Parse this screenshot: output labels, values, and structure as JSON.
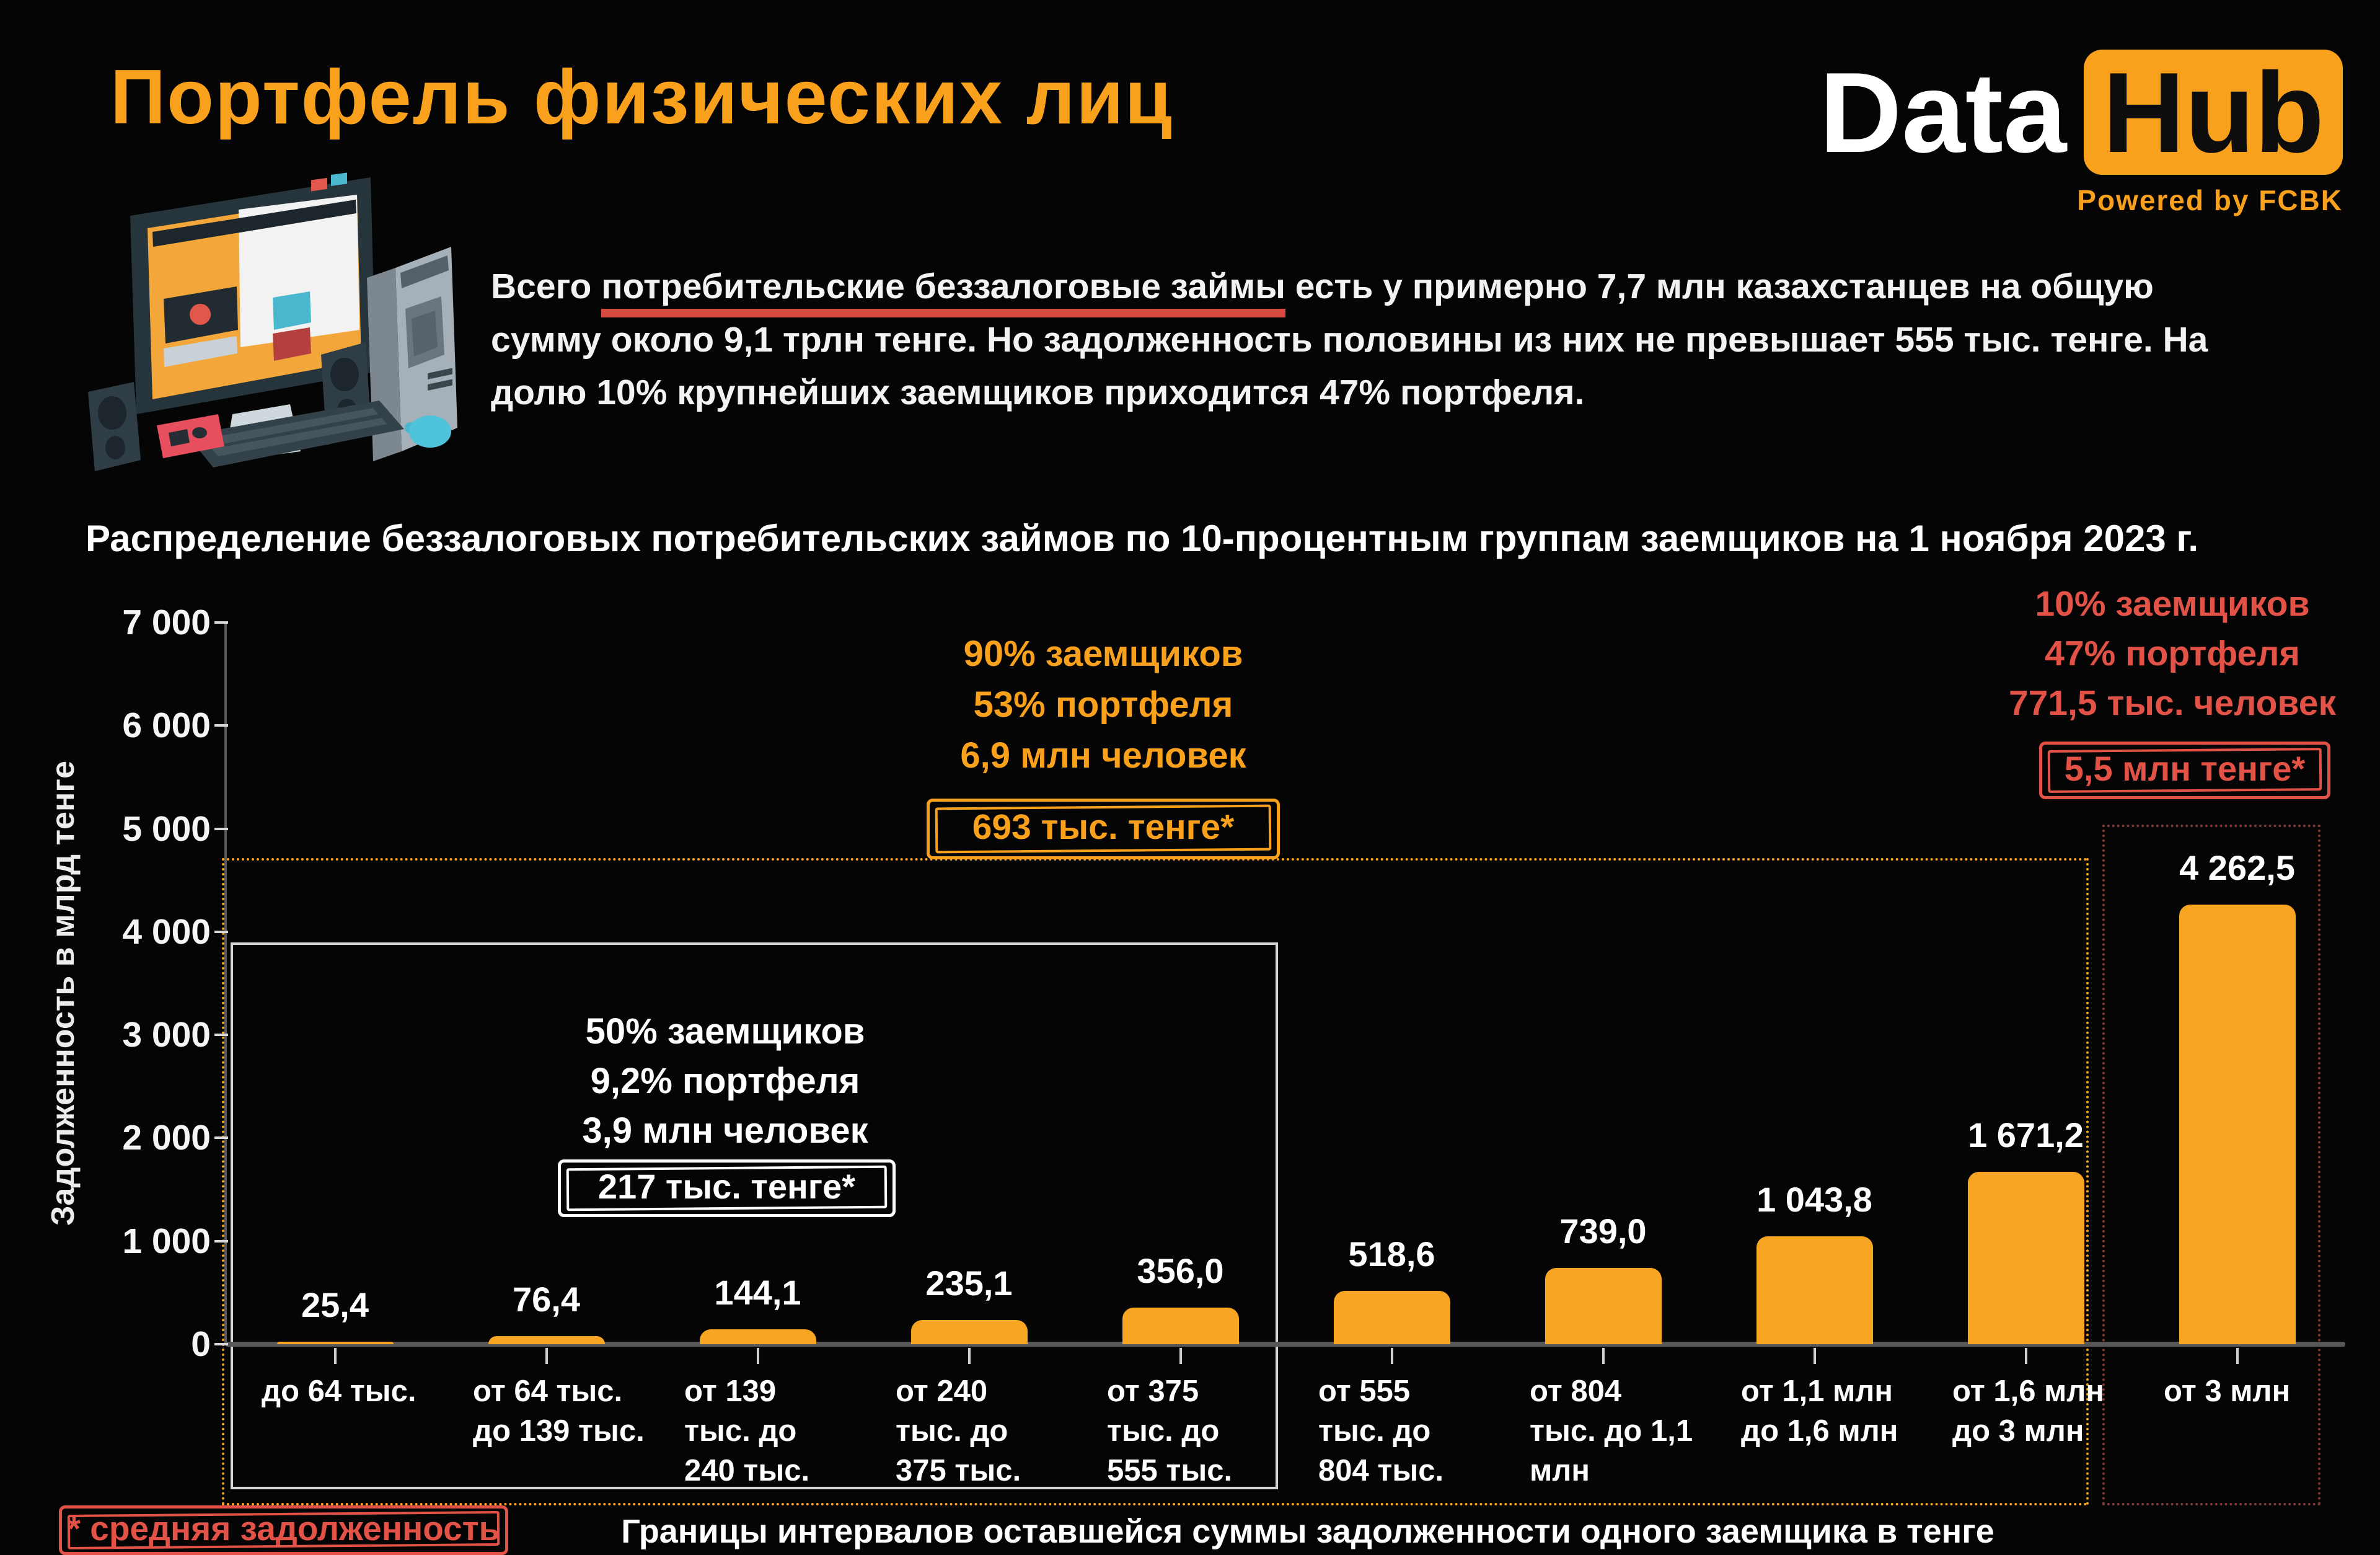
{
  "header": {
    "title": "Портфель физических лиц",
    "logo": {
      "part1": "Data",
      "part2": "Hub",
      "tagline": "Powered by FCBK"
    }
  },
  "intro": {
    "text_before": "Всего ",
    "text_underlined": "потребительские беззалоговые займы",
    "text_after": " есть у примерно 7,7 млн казахстанцев на общую сумму около 9,1 трлн тенге. Но задолженность половины из них не превышает 555 тыс. тенге. На долю 10% крупнейших заемщиков приходится 47% портфеля."
  },
  "chart_data": {
    "type": "bar",
    "title": "Распределение беззалоговых потребительских займов по 10-процентным группам заемщиков на 1 ноября 2023 г.",
    "ylabel": "Задолженность в млрд тенге",
    "xlabel": "Границы интервалов оставшейся суммы задолженности одного заемщика в тенге",
    "footnote": "* средняя задолженность",
    "ylim": [
      0,
      7000
    ],
    "grid": false,
    "y_ticks": [
      "7 000",
      "6 000",
      "5 000",
      "4 000",
      "3 000",
      "2 000",
      "1 000",
      "0"
    ],
    "categories": [
      "до 64 тыс.",
      "от 64 тыс. до 139 тыс.",
      "от 139 тыс. до 240 тыс.",
      "от 240 тыс. до 375 тыс.",
      "от 375 тыс. до 555 тыс.",
      "от 555 тыс. до 804 тыс.",
      "от 804 тыс. до 1,1 млн",
      "от 1,1 млн до 1,6 млн",
      "от 1,6 млн до 3 млн",
      "от 3 млн"
    ],
    "category_lines": [
      [
        "до 64 тыс."
      ],
      [
        "от 64 тыс.",
        "до 139 тыс."
      ],
      [
        "от 139",
        "тыс. до",
        "240 тыс."
      ],
      [
        "от 240",
        "тыс. до",
        "375 тыс."
      ],
      [
        "от 375",
        "тыс. до",
        "555 тыс."
      ],
      [
        "от 555",
        "тыс. до",
        "804 тыс."
      ],
      [
        "от 804",
        "тыс. до 1,1",
        "млн"
      ],
      [
        "от 1,1 млн",
        "до 1,6 млн"
      ],
      [
        "от 1,6 млн",
        "до 3 млн"
      ],
      [
        "от 3 млн"
      ]
    ],
    "values": [
      25.4,
      76.4,
      144.1,
      235.1,
      356.0,
      518.6,
      739.0,
      1043.8,
      1671.2,
      4262.5
    ],
    "value_labels": [
      "25,4",
      "76,4",
      "144,1",
      "235,1",
      "356,0",
      "518,6",
      "739,0",
      "1 043,8",
      "1 671,2",
      "4 262,5"
    ],
    "bar_color": "#F9A524",
    "groups": {
      "g90": {
        "covers_bars": "1-9",
        "lines": [
          "90% заемщиков",
          "53% портфеля",
          "6,9 млн человек"
        ],
        "badge": "693 тыс. тенге*",
        "color": "#F9A11D"
      },
      "g50": {
        "covers_bars": "1-5",
        "lines": [
          "50% заемщиков",
          "9,2% портфеля",
          "3,9 млн человек"
        ],
        "badge": "217 тыс. тенге*",
        "color": "#FFFFFF"
      },
      "g10": {
        "covers_bars": "10",
        "lines": [
          "10% заемщиков",
          "47% портфеля",
          "771,5 тыс. человек"
        ],
        "badge": "5,5 млн тенге*",
        "color": "#E25247"
      }
    }
  },
  "colors": {
    "background": "#050505",
    "accent_orange": "#F9A11D",
    "accent_red": "#E25247",
    "underline_red": "#D84A40",
    "axis_line": "#585858",
    "dark_red_dash": "#7E3B34"
  }
}
